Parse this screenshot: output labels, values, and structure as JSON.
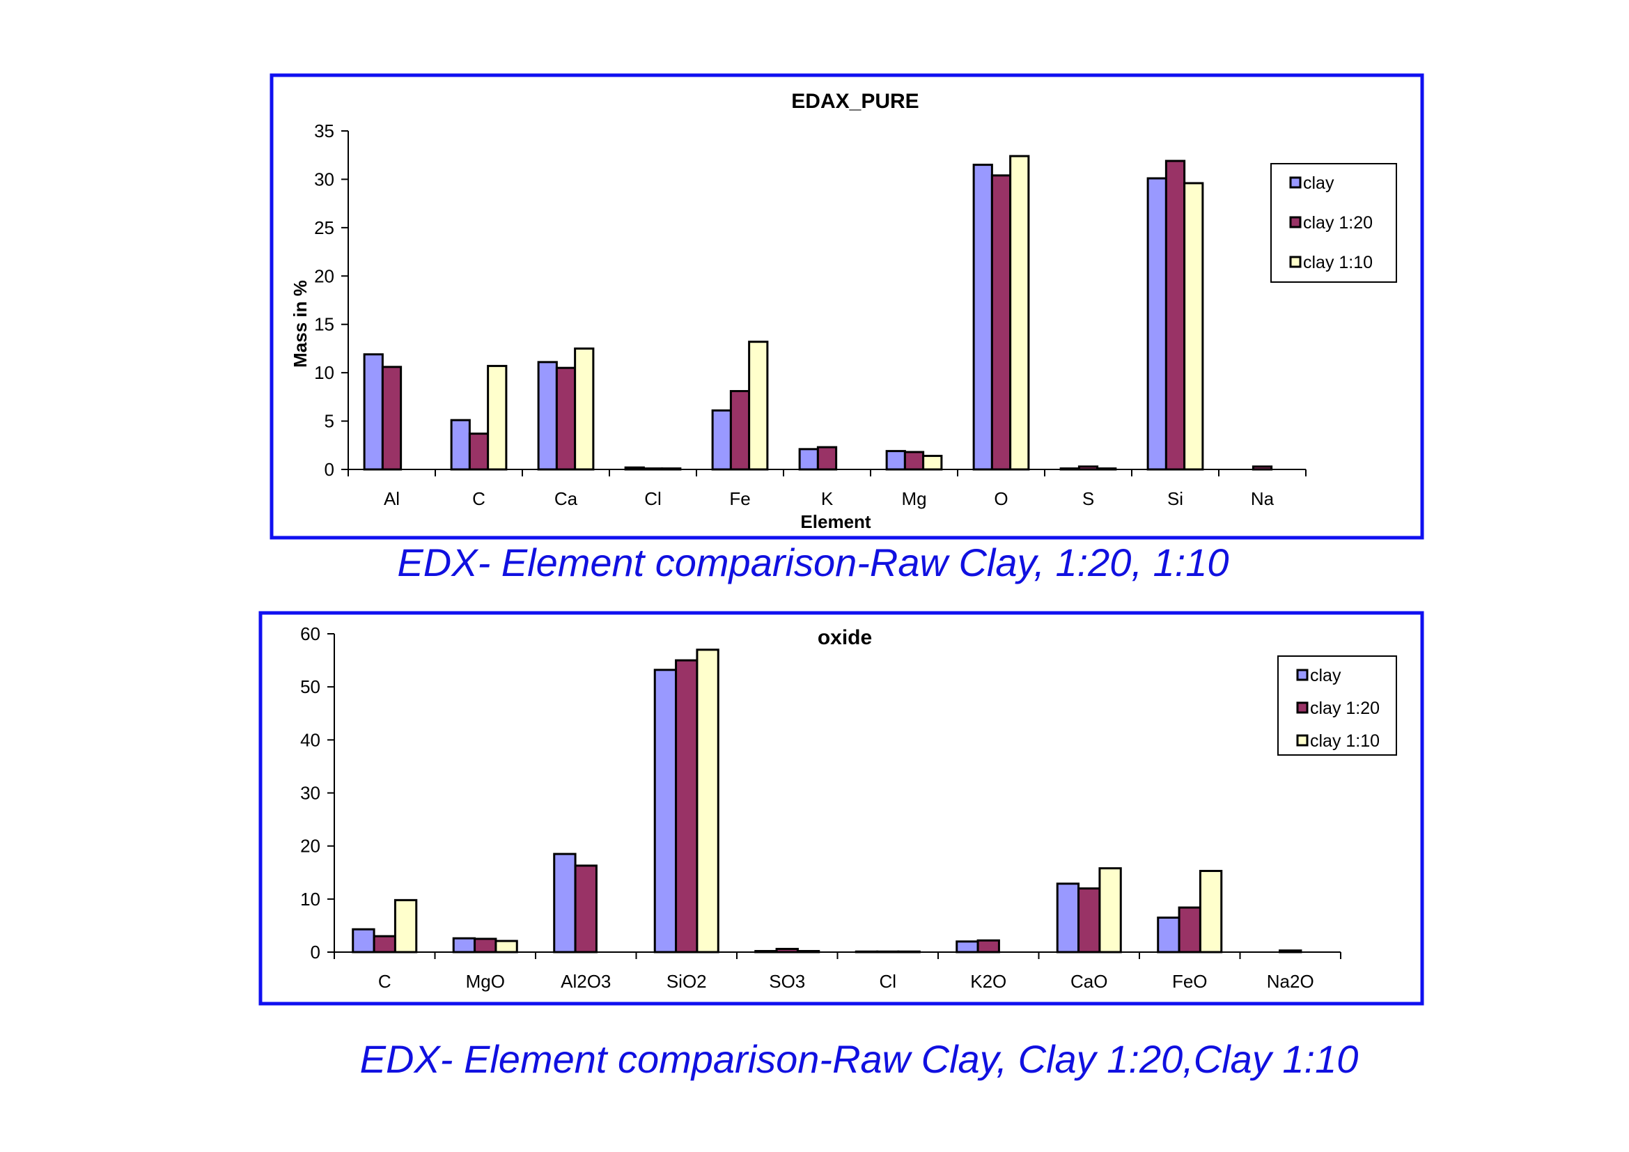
{
  "colors": {
    "frame": "#1010f0",
    "series": [
      "#9999ff",
      "#993366",
      "#ffffcc"
    ],
    "caption": "#1010e0"
  },
  "captions": [
    "EDX- Element comparison-Raw Clay, 1:20, 1:10",
    "EDX- Element comparison-Raw Clay, Clay 1:20,Clay 1:10"
  ],
  "chart_data": [
    {
      "type": "bar",
      "title": "EDAX_PURE",
      "xlabel": "Element",
      "ylabel": "Mass in %",
      "ylim": [
        0,
        35
      ],
      "yticks": [
        0,
        5,
        10,
        15,
        20,
        25,
        30,
        35
      ],
      "legend": "right",
      "categories": [
        "Al",
        "C",
        "Ca",
        "Cl",
        "Fe",
        "K",
        "Mg",
        "O",
        "S",
        "Si",
        "Na"
      ],
      "series": [
        {
          "name": "clay",
          "values": [
            11.9,
            5.1,
            11.1,
            0.2,
            6.1,
            2.1,
            1.9,
            31.5,
            0.1,
            30.1,
            0
          ]
        },
        {
          "name": "clay 1:20",
          "values": [
            10.6,
            3.7,
            10.5,
            0.1,
            8.1,
            2.3,
            1.8,
            30.4,
            0.3,
            31.9,
            0.3
          ]
        },
        {
          "name": "clay 1:10",
          "values": [
            0,
            10.7,
            12.5,
            0.1,
            13.2,
            0,
            1.4,
            32.4,
            0.1,
            29.6,
            0
          ]
        }
      ]
    },
    {
      "type": "bar",
      "title": "oxide",
      "xlabel": "",
      "ylabel": "",
      "ylim": [
        0,
        60
      ],
      "yticks": [
        0,
        10,
        20,
        30,
        40,
        50,
        60
      ],
      "legend": "right",
      "categories": [
        "C",
        "MgO",
        "Al2O3",
        "SiO2",
        "SO3",
        "Cl",
        "K2O",
        "CaO",
        "FeO",
        "Na2O"
      ],
      "series": [
        {
          "name": "clay",
          "values": [
            4.3,
            2.6,
            18.5,
            53.2,
            0.2,
            0.1,
            2.0,
            12.9,
            6.5,
            0
          ]
        },
        {
          "name": "clay 1:20",
          "values": [
            3.0,
            2.5,
            16.3,
            55.0,
            0.6,
            0.1,
            2.2,
            12.0,
            8.4,
            0.3
          ]
        },
        {
          "name": "clay 1:10",
          "values": [
            9.8,
            2.1,
            0,
            57.0,
            0.2,
            0.1,
            0,
            15.8,
            15.3,
            0
          ]
        }
      ]
    }
  ]
}
